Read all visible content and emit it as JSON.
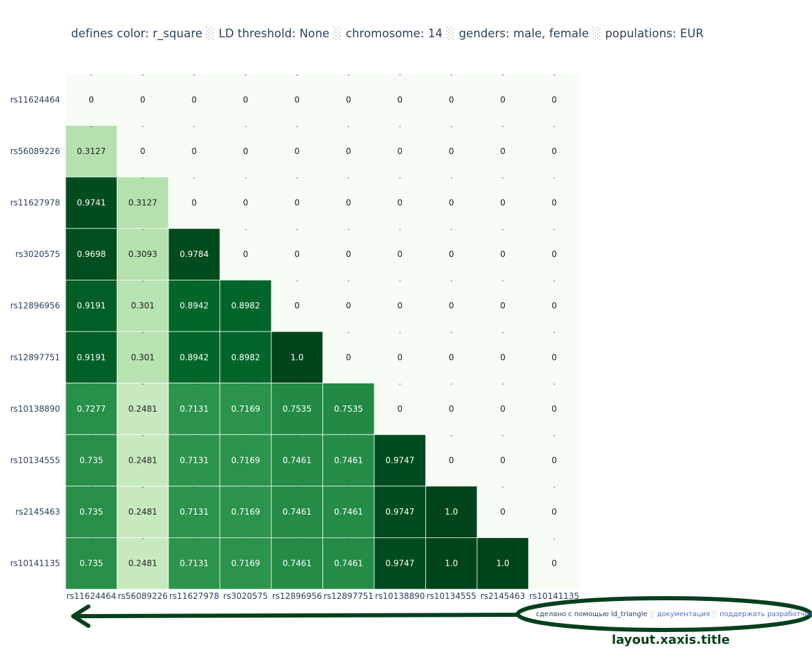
{
  "title": {
    "parts": [
      "defines color: r_square",
      "LD threshold: None",
      "chromosome: 14",
      "genders: male, female",
      "populations: EUR"
    ],
    "separator": "░"
  },
  "chart_data": {
    "type": "heatmap",
    "title": "defines color: r_square ░ LD threshold: None ░ chromosome: 14 ░ genders: male, female ░ populations: EUR",
    "colorscale": "Greens",
    "zlim": [
      0,
      1
    ],
    "x": [
      "rs11624464",
      "rs56089226",
      "rs11627978",
      "rs3020575",
      "rs12896956",
      "rs12897751",
      "rs10138890",
      "rs10134555",
      "rs2145463",
      "rs10141135"
    ],
    "y": [
      "rs11624464",
      "rs56089226",
      "rs11627978",
      "rs3020575",
      "rs12896956",
      "rs12897751",
      "rs10138890",
      "rs10134555",
      "rs2145463",
      "rs10141135"
    ],
    "z": [
      [
        "0",
        "0",
        "0",
        "0",
        "0",
        "0",
        "0",
        "0",
        "0",
        "0"
      ],
      [
        "0.3127",
        "0",
        "0",
        "0",
        "0",
        "0",
        "0",
        "0",
        "0",
        "0"
      ],
      [
        "0.9741",
        "0.3127",
        "0",
        "0",
        "0",
        "0",
        "0",
        "0",
        "0",
        "0"
      ],
      [
        "0.9698",
        "0.3093",
        "0.9784",
        "0",
        "0",
        "0",
        "0",
        "0",
        "0",
        "0"
      ],
      [
        "0.9191",
        "0.301",
        "0.8942",
        "0.8982",
        "0",
        "0",
        "0",
        "0",
        "0",
        "0"
      ],
      [
        "0.9191",
        "0.301",
        "0.8942",
        "0.8982",
        "1.0",
        "0",
        "0",
        "0",
        "0",
        "0"
      ],
      [
        "0.7277",
        "0.2481",
        "0.7131",
        "0.7169",
        "0.7535",
        "0.7535",
        "0",
        "0",
        "0",
        "0"
      ],
      [
        "0.735",
        "0.2481",
        "0.7131",
        "0.7169",
        "0.7461",
        "0.7461",
        "0.9747",
        "0",
        "0",
        "0"
      ],
      [
        "0.735",
        "0.2481",
        "0.7131",
        "0.7169",
        "0.7461",
        "0.7461",
        "0.9747",
        "1.0",
        "0",
        "0"
      ],
      [
        "0.735",
        "0.2481",
        "0.7131",
        "0.7169",
        "0.7461",
        "0.7461",
        "0.9747",
        "1.0",
        "1.0",
        "0"
      ]
    ]
  },
  "xaxis_title": {
    "made_with": "сделано с помощью ld_triangle",
    "docs": "документация",
    "support": "поддержать разработчика",
    "separator": "░"
  },
  "annotation": {
    "label": "layout.xaxis.title",
    "color": "#063f1d"
  }
}
